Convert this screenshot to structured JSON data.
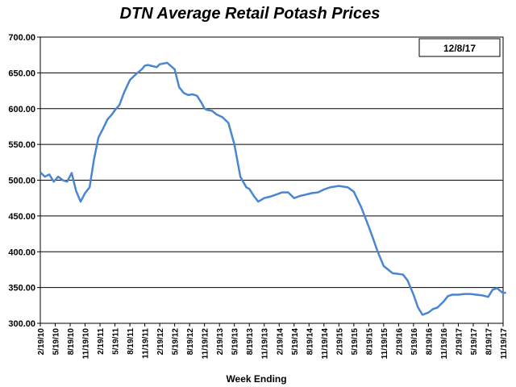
{
  "chart_data": {
    "type": "line",
    "title": "DTN Average Retail Potash Prices",
    "date_box": "12/8/17",
    "xlabel": "Week Ending",
    "ylabel": "",
    "ylim": [
      300,
      700
    ],
    "y_ticks": [
      "300.00",
      "350.00",
      "400.00",
      "450.00",
      "500.00",
      "550.00",
      "600.00",
      "650.00",
      "700.00"
    ],
    "x_ticks": [
      "2/19/10",
      "5/19/10",
      "8/19/10",
      "11/19/10",
      "2/19/11",
      "5/19/11",
      "8/19/11",
      "11/19/11",
      "2/19/12",
      "5/19/12",
      "8/19/12",
      "11/19/12",
      "2/19/13",
      "5/19/13",
      "8/19/13",
      "11/19/13",
      "2/19/14",
      "5/19/14",
      "8/19/14",
      "11/19/14",
      "2/19/15",
      "5/19/15",
      "8/19/15",
      "11/19/15",
      "2/19/16",
      "5/19/16",
      "8/19/16",
      "11/19/16",
      "2/19/17",
      "5/19/17",
      "8/19/17",
      "11/19/17"
    ],
    "grid": true,
    "line_color": "#4a86d0",
    "series": [
      {
        "x": [
          0,
          0.3,
          0.6,
          0.9,
          1.2,
          1.5,
          1.8,
          2.1,
          2.4,
          2.7,
          3,
          3.3,
          3.6,
          3.9,
          4.2,
          4.5,
          4.8,
          5,
          5.3,
          5.6,
          6,
          6.4,
          6.8,
          7,
          7.2,
          7.4,
          7.6,
          7.8,
          8,
          8.5,
          9,
          9.3,
          9.6,
          9.9,
          10.2,
          10.5,
          10.8,
          11,
          11.2,
          11.5,
          11.8,
          12.2,
          12.6,
          13,
          13.4,
          13.8,
          14,
          14.3,
          14.6,
          15,
          15.4,
          15.8,
          16.2,
          16.6,
          17,
          17.4,
          17.8,
          18.2,
          18.6,
          19,
          19.4,
          19.7,
          20,
          20.3,
          20.6,
          21,
          21.5,
          22,
          22.3,
          22.6,
          23,
          23.3,
          23.6,
          24,
          24.3,
          24.6,
          25,
          25.3,
          25.6,
          26,
          26.3,
          26.6,
          27,
          27.3,
          27.6,
          28,
          28.4,
          28.8,
          29.2,
          29.6,
          30,
          30.3,
          30.6,
          31,
          31.2
        ],
        "y": [
          511,
          505,
          508,
          498,
          505,
          500,
          498,
          510,
          485,
          470,
          482,
          490,
          530,
          560,
          572,
          585,
          592,
          598,
          605,
          622,
          640,
          648,
          655,
          660,
          661,
          660,
          659,
          658,
          662,
          664,
          655,
          630,
          622,
          619,
          620,
          618,
          608,
          600,
          598,
          597,
          592,
          588,
          580,
          550,
          505,
          490,
          488,
          478,
          470,
          475,
          477,
          480,
          483,
          483,
          475,
          478,
          480,
          482,
          483,
          487,
          490,
          491,
          492,
          491,
          490,
          484,
          462,
          435,
          418,
          400,
          380,
          375,
          370,
          369,
          368,
          360,
          340,
          322,
          312,
          315,
          320,
          322,
          330,
          338,
          340,
          340,
          341,
          341,
          340,
          339,
          337,
          347,
          349,
          342,
          343
        ]
      }
    ]
  }
}
